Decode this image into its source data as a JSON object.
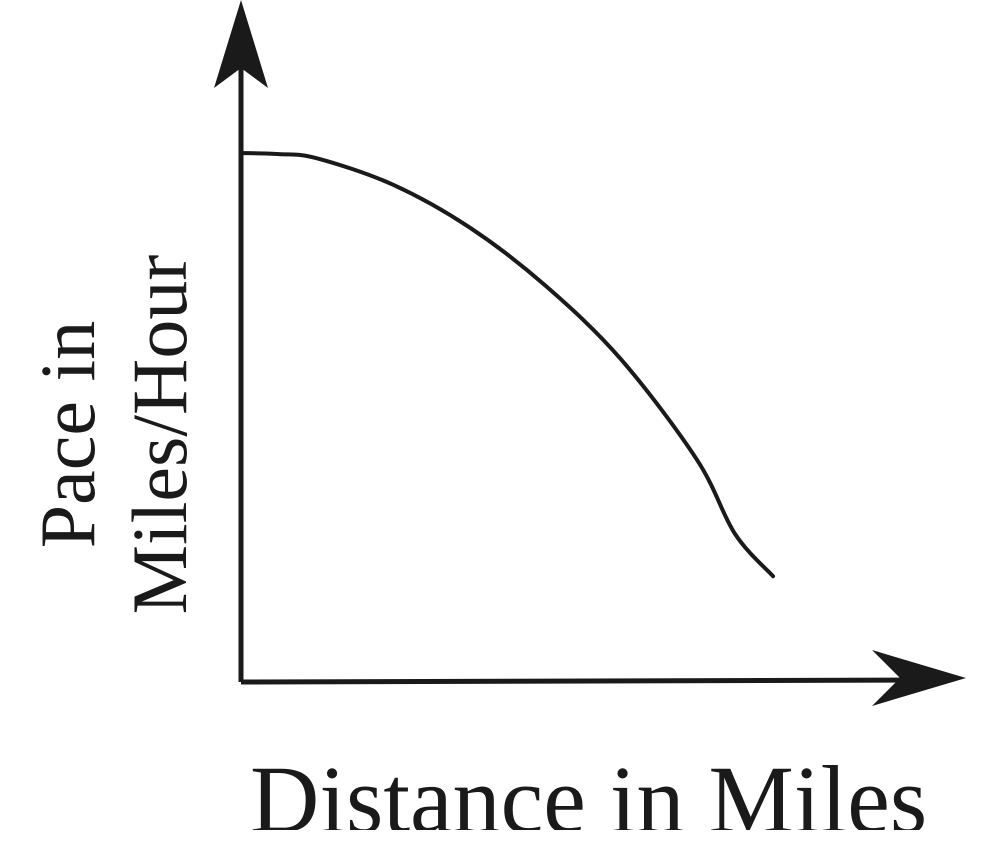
{
  "chart_data": {
    "type": "line",
    "title": "",
    "xlabel": "Distance in Miles",
    "ylabel_lines": [
      "Pace in",
      "Miles/Hour"
    ],
    "ylabel": "Pace in Miles/Hour",
    "grid": false,
    "x_ticks": [],
    "y_ticks": [],
    "xlim": [
      0,
      10
    ],
    "ylim": [
      0,
      10
    ],
    "series": [
      {
        "x": [
          0,
          0.5,
          1,
          2,
          3,
          4,
          5,
          6,
          6.5,
          7
        ],
        "y": [
          10,
          9.98,
          9.9,
          9.4,
          8.6,
          7.5,
          6.1,
          4.2,
          2.8,
          2.0
        ]
      }
    ],
    "line_color": "#1a1a1a"
  }
}
